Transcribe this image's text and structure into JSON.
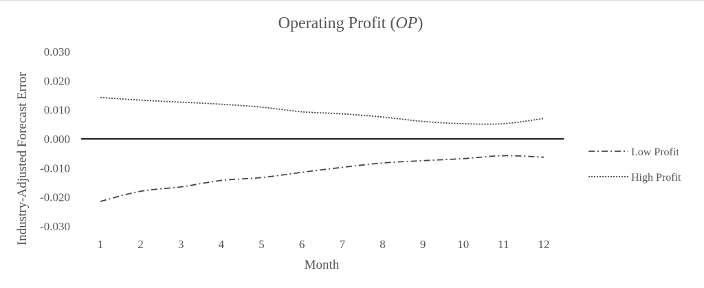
{
  "chart_data": {
    "type": "line",
    "title": "Operating Profit",
    "title_suffix": "OP",
    "xlabel": "Month",
    "ylabel": "Industry-Adjusted Forecast Error",
    "x": [
      1,
      2,
      3,
      4,
      5,
      6,
      7,
      8,
      9,
      10,
      11,
      12
    ],
    "x_tick_labels": [
      "1",
      "2",
      "3",
      "4",
      "5",
      "6",
      "7",
      "8",
      "9",
      "10",
      "11",
      "12"
    ],
    "y_tick_labels": [
      "0.030",
      "0.020",
      "0.010",
      "0.000",
      "-0.010",
      "-0.020",
      "-0.030"
    ],
    "y_ticks": [
      0.03,
      0.02,
      0.01,
      0.0,
      -0.01,
      -0.02,
      -0.03
    ],
    "ylim": [
      -0.03,
      0.03
    ],
    "grid": false,
    "legend_position": "right",
    "series": [
      {
        "name": "Low Profit",
        "line_style": "dash-dot",
        "color": "#444444",
        "values": [
          -0.0215,
          -0.018,
          -0.0165,
          -0.0143,
          -0.0133,
          -0.0115,
          -0.0098,
          -0.0083,
          -0.0075,
          -0.0068,
          -0.0058,
          -0.0063
        ]
      },
      {
        "name": "High Profit",
        "line_style": "dotted",
        "color": "#444444",
        "values": [
          0.0142,
          0.0133,
          0.0126,
          0.0119,
          0.0109,
          0.0093,
          0.0086,
          0.0075,
          0.006,
          0.0052,
          0.0052,
          0.007
        ]
      }
    ]
  }
}
